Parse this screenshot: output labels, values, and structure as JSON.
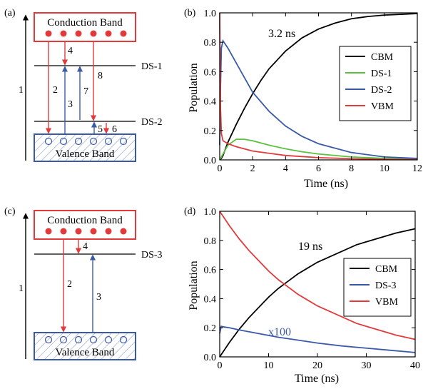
{
  "colors": {
    "black": "#000000",
    "red": "#e23a3a",
    "blue": "#3a5aa8",
    "green": "#59c23e"
  },
  "panel_a": {
    "tag": "(a)",
    "conduction_label": "Conduction Band",
    "valence_label": "Valence Band",
    "levels": [
      "DS-1",
      "DS-2"
    ],
    "transitions": [
      "1",
      "2",
      "3",
      "4",
      "5",
      "6",
      "7",
      "8"
    ]
  },
  "panel_c": {
    "tag": "(c)",
    "conduction_label": "Conduction Band",
    "valence_label": "Valence Band",
    "levels": [
      "DS-3"
    ],
    "transitions": [
      "1",
      "2",
      "3",
      "4"
    ]
  },
  "chart_data": [
    {
      "panel": "(b)",
      "type": "line",
      "xlabel": "Time (ns)",
      "ylabel": "Population",
      "xlim": [
        0,
        12
      ],
      "ylim": [
        0,
        1.0
      ],
      "xticks": [
        "0",
        "2",
        "4",
        "6",
        "8",
        "10",
        "12"
      ],
      "yticks": [
        "0.0",
        "0.2",
        "0.4",
        "0.6",
        "0.8",
        "1.0"
      ],
      "legend_position": "right",
      "annotation": "3.2 ns",
      "series": [
        {
          "name": "CBM",
          "color": "#000000",
          "x": [
            0,
            0.1,
            0.2,
            0.5,
            1,
            1.5,
            2,
            2.5,
            3,
            4,
            5,
            6,
            7,
            8,
            9,
            10,
            11,
            12
          ],
          "y": [
            0,
            0.01,
            0.03,
            0.12,
            0.24,
            0.35,
            0.45,
            0.54,
            0.62,
            0.74,
            0.83,
            0.89,
            0.93,
            0.96,
            0.975,
            0.985,
            0.99,
            0.995
          ]
        },
        {
          "name": "DS-1",
          "color": "#59c23e",
          "x": [
            0,
            0.2,
            0.5,
            1,
            1.5,
            2,
            3,
            4,
            5,
            6,
            8,
            10,
            12
          ],
          "y": [
            0,
            0.04,
            0.1,
            0.14,
            0.14,
            0.13,
            0.1,
            0.075,
            0.055,
            0.04,
            0.02,
            0.01,
            0.005
          ]
        },
        {
          "name": "DS-2",
          "color": "#3a5aa8",
          "x": [
            0,
            0.05,
            0.1,
            0.2,
            0.5,
            1,
            1.5,
            2,
            3,
            4,
            5,
            6,
            8,
            10,
            12
          ],
          "y": [
            0.1,
            0.5,
            0.76,
            0.81,
            0.76,
            0.66,
            0.56,
            0.46,
            0.33,
            0.23,
            0.16,
            0.11,
            0.05,
            0.02,
            0.01
          ]
        },
        {
          "name": "VBM",
          "color": "#e23a3a",
          "x": [
            0,
            0.02,
            0.05,
            0.1,
            0.2,
            0.5,
            1,
            2,
            3,
            4,
            6,
            8,
            10,
            12
          ],
          "y": [
            1.0,
            0.7,
            0.35,
            0.18,
            0.13,
            0.11,
            0.09,
            0.06,
            0.045,
            0.03,
            0.015,
            0.008,
            0.004,
            0.002
          ]
        }
      ]
    },
    {
      "panel": "(d)",
      "type": "line",
      "xlabel": "Time (ns)",
      "ylabel": "Population",
      "xlim": [
        0,
        40
      ],
      "ylim": [
        0,
        1.0
      ],
      "xticks": [
        "0",
        "10",
        "20",
        "30",
        "40"
      ],
      "yticks": [
        "0.0",
        "0.2",
        "0.4",
        "0.6",
        "0.8",
        "1.0"
      ],
      "legend_position": "right",
      "annotations": [
        "19 ns",
        "x100"
      ],
      "series": [
        {
          "name": "CBM",
          "color": "#000000",
          "x": [
            0,
            2,
            4,
            6,
            8,
            10,
            12,
            14,
            16,
            18,
            20,
            24,
            28,
            32,
            36,
            40
          ],
          "y": [
            0,
            0.1,
            0.19,
            0.27,
            0.34,
            0.41,
            0.47,
            0.52,
            0.57,
            0.61,
            0.65,
            0.71,
            0.77,
            0.81,
            0.85,
            0.88
          ]
        },
        {
          "name": "DS-3",
          "color": "#3a5aa8",
          "x": [
            0,
            0.3,
            1,
            2,
            4,
            8,
            12,
            16,
            20,
            25,
            30,
            35,
            40
          ],
          "y": [
            0.16,
            0.21,
            0.205,
            0.2,
            0.185,
            0.16,
            0.135,
            0.115,
            0.095,
            0.075,
            0.06,
            0.045,
            0.03
          ]
        },
        {
          "name": "VBM",
          "color": "#e23a3a",
          "x": [
            0,
            2,
            4,
            6,
            8,
            10,
            12,
            14,
            16,
            18,
            20,
            24,
            28,
            32,
            36,
            40
          ],
          "y": [
            1.0,
            0.9,
            0.81,
            0.73,
            0.66,
            0.59,
            0.53,
            0.48,
            0.43,
            0.39,
            0.35,
            0.29,
            0.23,
            0.19,
            0.15,
            0.12
          ]
        }
      ]
    }
  ]
}
